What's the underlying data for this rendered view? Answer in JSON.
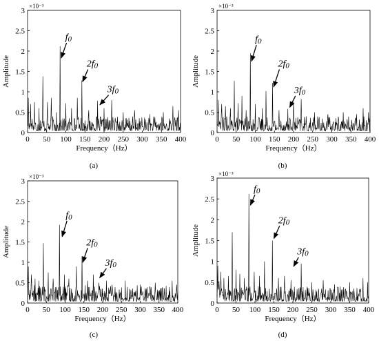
{
  "figure": {
    "panels": [
      {
        "label": "(a)"
      },
      {
        "label": "(b)"
      },
      {
        "label": "(c)"
      },
      {
        "label": "(d)"
      }
    ]
  },
  "chart_data": [
    {
      "type": "line",
      "xlabel": "Frequency（Hz）",
      "ylabel": "Amplitude",
      "y_multiplier": "×10⁻³",
      "xlim": [
        0,
        400
      ],
      "ylim": [
        0,
        3
      ],
      "x_ticks": [
        "0",
        "50",
        "100",
        "150",
        "200",
        "250",
        "300",
        "350",
        "400"
      ],
      "y_ticks": [
        "0",
        "0.5",
        "1",
        "1.5",
        "2",
        "2.5",
        "3"
      ],
      "colors": {
        "line": "#000000"
      },
      "peaks": [
        {
          "x": 2,
          "y": 0.85
        },
        {
          "x": 8,
          "y": 0.7
        },
        {
          "x": 18,
          "y": 0.75
        },
        {
          "x": 30,
          "y": 0.6
        },
        {
          "x": 40,
          "y": 1.38
        },
        {
          "x": 52,
          "y": 0.75
        },
        {
          "x": 62,
          "y": 0.85
        },
        {
          "x": 75,
          "y": 0.5
        },
        {
          "x": 85,
          "y": 2.12
        },
        {
          "x": 100,
          "y": 0.72
        },
        {
          "x": 115,
          "y": 0.6
        },
        {
          "x": 130,
          "y": 0.85
        },
        {
          "x": 142,
          "y": 1.28
        },
        {
          "x": 160,
          "y": 0.55
        },
        {
          "x": 183,
          "y": 0.78
        },
        {
          "x": 200,
          "y": 0.6
        },
        {
          "x": 220,
          "y": 0.8
        },
        {
          "x": 250,
          "y": 0.5
        },
        {
          "x": 280,
          "y": 0.55
        },
        {
          "x": 320,
          "y": 0.45
        },
        {
          "x": 355,
          "y": 0.5
        },
        {
          "x": 380,
          "y": 0.65
        },
        {
          "x": 395,
          "y": 0.55
        }
      ],
      "noise_level": 0.18,
      "annotations": [
        {
          "text": "f0",
          "arrow_from": [
            102,
            2.2
          ],
          "arrow_to": [
            88,
            1.83
          ]
        },
        {
          "text": "2f0",
          "arrow_from": [
            158,
            1.55
          ],
          "arrow_to": [
            144,
            1.25
          ]
        },
        {
          "text": "3f0",
          "arrow_from": [
            212,
            0.92
          ],
          "arrow_to": [
            189,
            0.68
          ]
        }
      ]
    },
    {
      "type": "line",
      "xlabel": "Frequency（Hz）",
      "ylabel": "Amplitude",
      "y_multiplier": "×10⁻³",
      "xlim": [
        0,
        400
      ],
      "ylim": [
        0,
        3
      ],
      "x_ticks": [
        "0",
        "50",
        "100",
        "150",
        "200",
        "250",
        "300",
        "350",
        "400"
      ],
      "y_ticks": [
        "0",
        "0.5",
        "1",
        "1.5",
        "2",
        "2.5",
        "3"
      ],
      "colors": {
        "line": "#000000"
      },
      "peaks": [
        {
          "x": 3,
          "y": 0.8
        },
        {
          "x": 12,
          "y": 0.7
        },
        {
          "x": 22,
          "y": 0.65
        },
        {
          "x": 35,
          "y": 0.6
        },
        {
          "x": 45,
          "y": 1.27
        },
        {
          "x": 55,
          "y": 0.72
        },
        {
          "x": 65,
          "y": 0.9
        },
        {
          "x": 76,
          "y": 0.55
        },
        {
          "x": 87,
          "y": 1.95
        },
        {
          "x": 100,
          "y": 0.7
        },
        {
          "x": 118,
          "y": 0.6
        },
        {
          "x": 128,
          "y": 1.02
        },
        {
          "x": 145,
          "y": 1.22
        },
        {
          "x": 162,
          "y": 0.55
        },
        {
          "x": 185,
          "y": 0.58
        },
        {
          "x": 200,
          "y": 0.75
        },
        {
          "x": 220,
          "y": 0.82
        },
        {
          "x": 255,
          "y": 0.5
        },
        {
          "x": 290,
          "y": 0.45
        },
        {
          "x": 330,
          "y": 0.5
        },
        {
          "x": 365,
          "y": 0.45
        },
        {
          "x": 382,
          "y": 0.6
        },
        {
          "x": 396,
          "y": 0.5
        }
      ],
      "noise_level": 0.18,
      "annotations": [
        {
          "text": "f0",
          "arrow_from": [
            103,
            2.15
          ],
          "arrow_to": [
            90,
            1.75
          ]
        },
        {
          "text": "2f0",
          "arrow_from": [
            163,
            1.55
          ],
          "arrow_to": [
            148,
            1.12
          ]
        },
        {
          "text": "3f0",
          "arrow_from": [
            205,
            0.9
          ],
          "arrow_to": [
            190,
            0.62
          ]
        }
      ]
    },
    {
      "type": "line",
      "xlabel": "Frequency（Hz）",
      "ylabel": "Amplitude",
      "y_multiplier": "×10⁻³",
      "xlim": [
        0,
        400
      ],
      "ylim": [
        0,
        3
      ],
      "x_ticks": [
        "0",
        "50",
        "100",
        "150",
        "200",
        "250",
        "300",
        "350",
        "400"
      ],
      "y_ticks": [
        "0",
        "0.5",
        "1",
        "1.5",
        "2",
        "2.5",
        "3"
      ],
      "colors": {
        "line": "#000000"
      },
      "peaks": [
        {
          "x": 2,
          "y": 0.9
        },
        {
          "x": 10,
          "y": 0.7
        },
        {
          "x": 20,
          "y": 0.6
        },
        {
          "x": 30,
          "y": 0.55
        },
        {
          "x": 42,
          "y": 1.47
        },
        {
          "x": 55,
          "y": 0.75
        },
        {
          "x": 68,
          "y": 0.6
        },
        {
          "x": 85,
          "y": 1.92
        },
        {
          "x": 98,
          "y": 0.7
        },
        {
          "x": 110,
          "y": 0.6
        },
        {
          "x": 130,
          "y": 0.9
        },
        {
          "x": 145,
          "y": 1.15
        },
        {
          "x": 160,
          "y": 0.55
        },
        {
          "x": 175,
          "y": 0.7
        },
        {
          "x": 190,
          "y": 0.5
        },
        {
          "x": 210,
          "y": 0.55
        },
        {
          "x": 225,
          "y": 0.45
        },
        {
          "x": 260,
          "y": 0.55
        },
        {
          "x": 300,
          "y": 0.45
        },
        {
          "x": 340,
          "y": 0.5
        },
        {
          "x": 385,
          "y": 0.55
        },
        {
          "x": 397,
          "y": 0.45
        }
      ],
      "noise_level": 0.2,
      "annotations": [
        {
          "text": "f0",
          "arrow_from": [
            105,
            2.02
          ],
          "arrow_to": [
            92,
            1.63
          ]
        },
        {
          "text": "2f0",
          "arrow_from": [
            160,
            1.35
          ],
          "arrow_to": [
            147,
            1.0
          ]
        },
        {
          "text": "3f0",
          "arrow_from": [
            210,
            0.85
          ],
          "arrow_to": [
            192,
            0.62
          ]
        }
      ]
    },
    {
      "type": "line",
      "xlabel": "Frequency（Hz）",
      "ylabel": "Amplitude",
      "y_multiplier": "×10⁻³",
      "xlim": [
        0,
        400
      ],
      "ylim": [
        0,
        3
      ],
      "x_ticks": [
        "0",
        "50",
        "100",
        "150",
        "200",
        "250",
        "300",
        "350",
        "400"
      ],
      "y_ticks": [
        "0",
        "0.5",
        "1",
        "1.5",
        "2",
        "2.5",
        "3"
      ],
      "colors": {
        "line": "#000000"
      },
      "peaks": [
        {
          "x": 2,
          "y": 0.9
        },
        {
          "x": 10,
          "y": 0.75
        },
        {
          "x": 18,
          "y": 0.6
        },
        {
          "x": 30,
          "y": 0.65
        },
        {
          "x": 40,
          "y": 1.7
        },
        {
          "x": 50,
          "y": 0.8
        },
        {
          "x": 60,
          "y": 0.7
        },
        {
          "x": 72,
          "y": 0.6
        },
        {
          "x": 84,
          "y": 2.62
        },
        {
          "x": 98,
          "y": 0.75
        },
        {
          "x": 112,
          "y": 0.65
        },
        {
          "x": 125,
          "y": 1.0
        },
        {
          "x": 146,
          "y": 1.5
        },
        {
          "x": 162,
          "y": 0.6
        },
        {
          "x": 178,
          "y": 0.65
        },
        {
          "x": 195,
          "y": 0.55
        },
        {
          "x": 222,
          "y": 0.95
        },
        {
          "x": 250,
          "y": 0.5
        },
        {
          "x": 280,
          "y": 0.55
        },
        {
          "x": 310,
          "y": 0.45
        },
        {
          "x": 350,
          "y": 0.5
        },
        {
          "x": 385,
          "y": 0.6
        },
        {
          "x": 397,
          "y": 0.5
        }
      ],
      "noise_level": 0.18,
      "annotations": [
        {
          "text": "f0",
          "arrow_from": [
            100,
            2.6
          ],
          "arrow_to": [
            88,
            2.35
          ]
        },
        {
          "text": "2f0",
          "arrow_from": [
            165,
            1.85
          ],
          "arrow_to": [
            150,
            1.55
          ]
        },
        {
          "text": "3f0",
          "arrow_from": [
            215,
            1.1
          ],
          "arrow_to": [
            202,
            0.88
          ]
        }
      ]
    }
  ]
}
